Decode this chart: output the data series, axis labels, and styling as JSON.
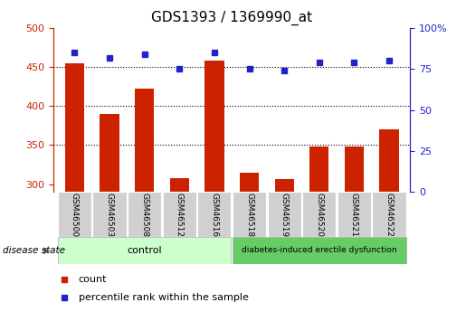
{
  "title": "GDS1393 / 1369990_at",
  "samples": [
    "GSM46500",
    "GSM46503",
    "GSM46508",
    "GSM46512",
    "GSM46516",
    "GSM46518",
    "GSM46519",
    "GSM46520",
    "GSM46521",
    "GSM46522"
  ],
  "counts": [
    455,
    390,
    422,
    308,
    458,
    314,
    306,
    348,
    348,
    370
  ],
  "percentile_ranks": [
    85,
    82,
    84,
    75,
    85,
    75,
    74,
    79,
    79,
    80
  ],
  "ylim_left": [
    290,
    500
  ],
  "ylim_right": [
    0,
    100
  ],
  "yticks_left": [
    300,
    350,
    400,
    450,
    500
  ],
  "yticks_right": [
    0,
    25,
    50,
    75,
    100
  ],
  "ytick_labels_right": [
    "0",
    "25",
    "50",
    "75",
    "100%"
  ],
  "grid_lines": [
    350,
    400,
    450
  ],
  "bar_color": "#cc2200",
  "dot_color": "#2222cc",
  "n_control": 5,
  "n_disease": 5,
  "control_label": "control",
  "disease_label": "diabetes-induced erectile dysfunction",
  "disease_state_label": "disease state",
  "legend_count_label": "count",
  "legend_pct_label": "percentile rank within the sample",
  "control_bg": "#ccffcc",
  "disease_bg": "#66cc66",
  "tick_label_bg": "#d0d0d0",
  "title_fontsize": 11,
  "tick_fontsize": 8,
  "sample_fontsize": 6.5,
  "group_fontsize": 8,
  "legend_fontsize": 8,
  "bar_width": 0.55
}
